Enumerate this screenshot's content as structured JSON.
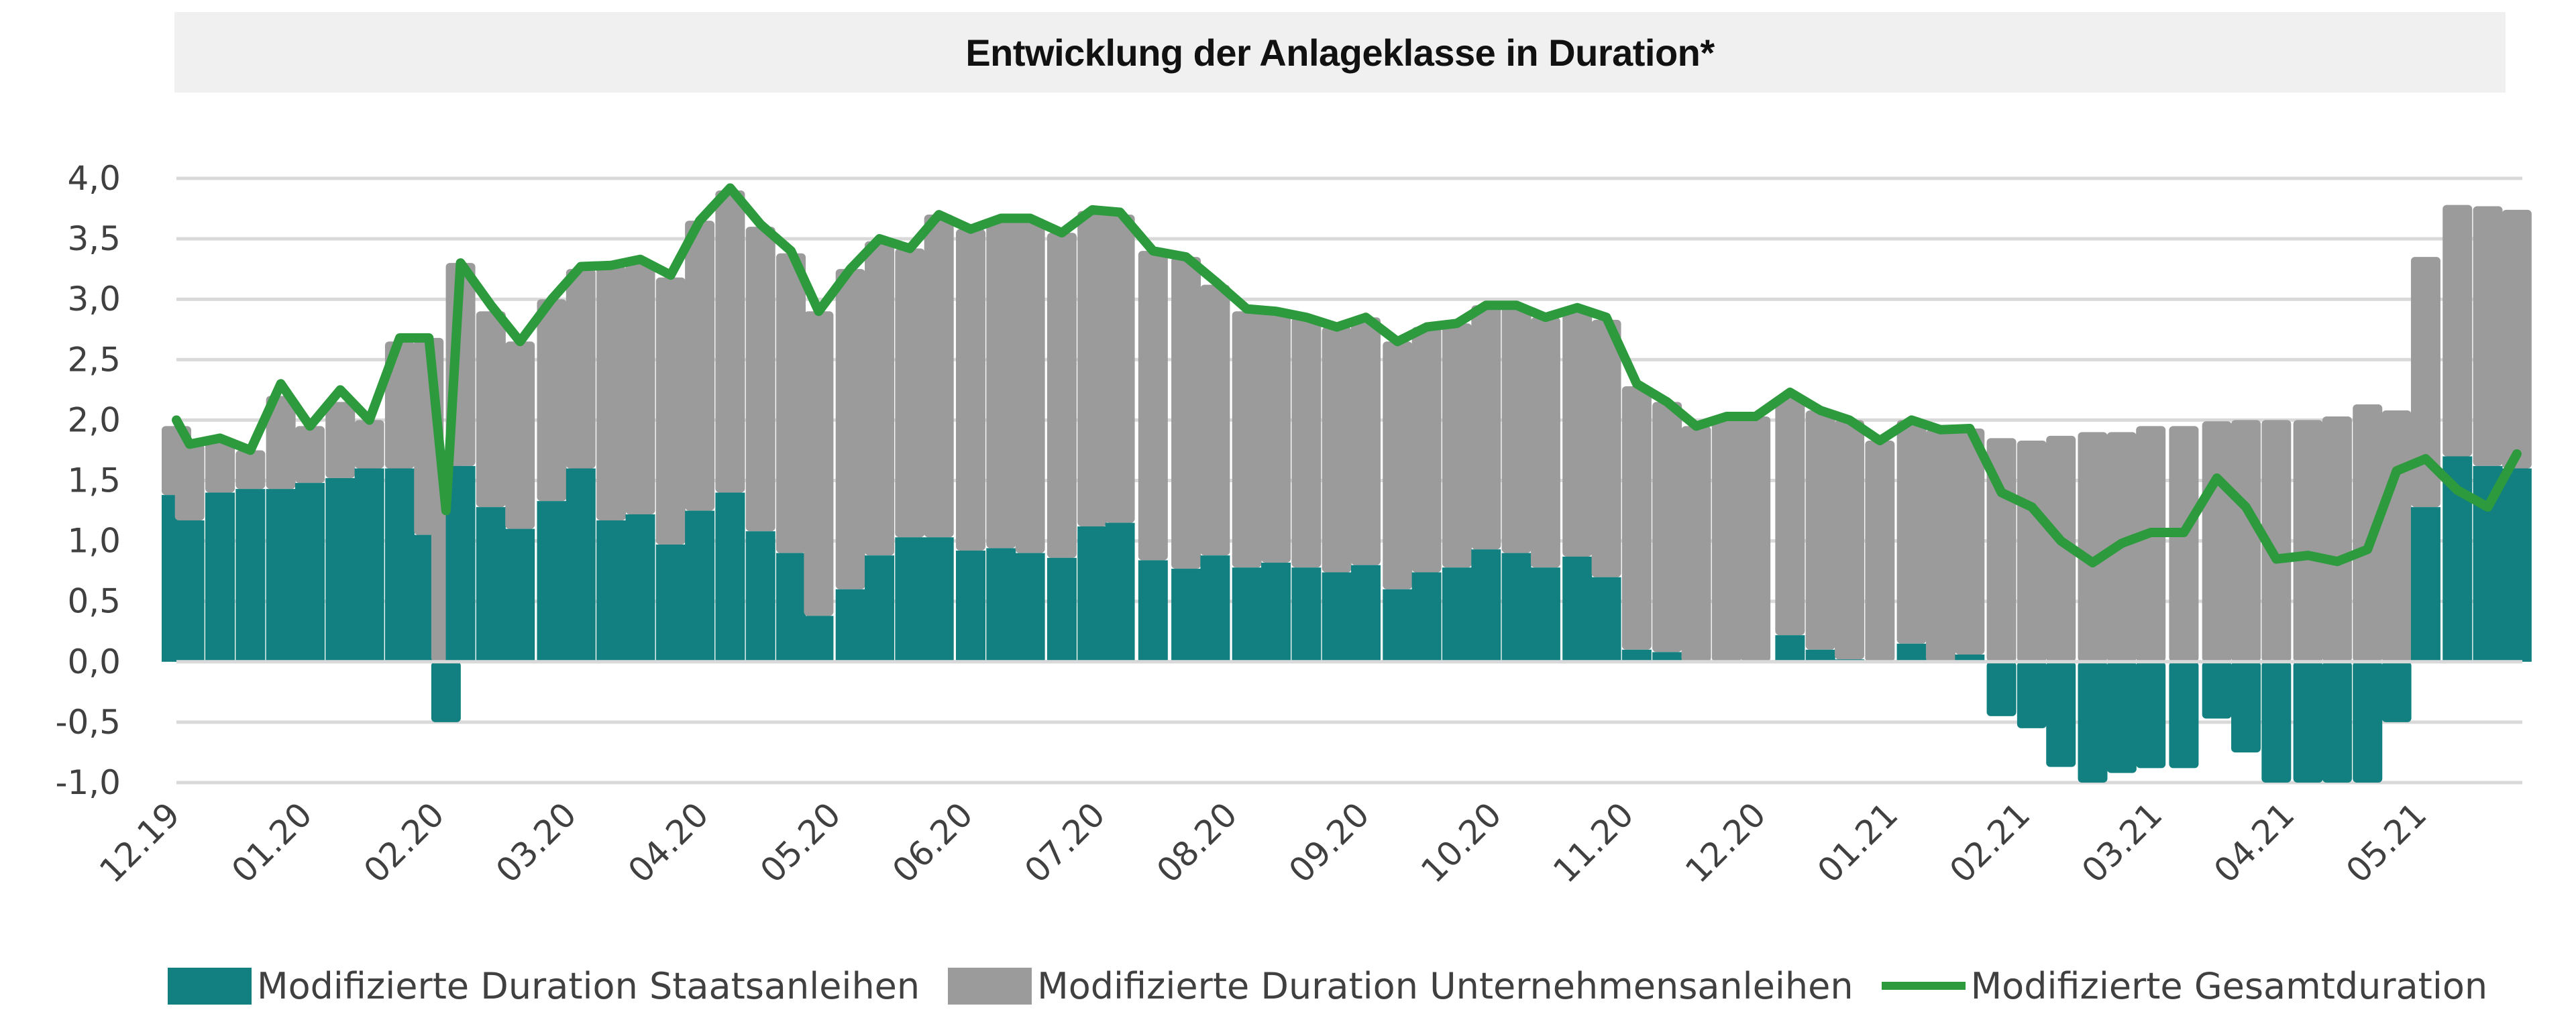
{
  "chart_data": {
    "type": "bar",
    "subtype": "stacked bar with line overlay",
    "title": "Entwicklung der Anlageklasse in Duration*",
    "xlabel": "",
    "ylabel": "",
    "ylim": [
      -1.0,
      4.0
    ],
    "yticks": [
      4.0,
      3.5,
      3.0,
      2.5,
      2.0,
      1.5,
      1.0,
      0.5,
      0.0,
      -0.5,
      -1.0
    ],
    "ytick_labels": [
      "4,0",
      "3,5",
      "3,0",
      "2,5",
      "2,0",
      "1,5",
      "1,0",
      "0,5",
      "0,0",
      "-0,5",
      "-1,0"
    ],
    "grid": true,
    "legend_position": "bottom",
    "x_ticks": [
      "12.19",
      "01.20",
      "02.20",
      "03.20",
      "04.20",
      "05.20",
      "06.20",
      "07.20",
      "08.20",
      "09.20",
      "10.20",
      "11.20",
      "12.20",
      "01.21",
      "02.21",
      "03.21",
      "04.21",
      "05.21"
    ],
    "x_unit": "months since 12.19",
    "x": [
      0.0,
      0.1,
      0.33,
      0.56,
      0.79,
      1.01,
      1.24,
      1.46,
      1.69,
      1.91,
      2.04,
      2.15,
      2.38,
      2.6,
      2.84,
      3.06,
      3.29,
      3.51,
      3.74,
      3.96,
      4.19,
      4.42,
      4.65,
      4.86,
      5.1,
      5.32,
      5.55,
      5.77,
      6.01,
      6.24,
      6.46,
      6.7,
      6.93,
      7.14,
      7.39,
      7.64,
      7.86,
      8.1,
      8.32,
      8.55,
      8.78,
      9.0,
      9.24,
      9.46,
      9.69,
      9.91,
      10.14,
      10.36,
      10.6,
      10.82,
      11.05,
      11.28,
      11.5,
      11.73,
      11.95,
      12.21,
      12.44,
      12.66,
      12.89,
      13.13,
      13.35,
      13.57,
      13.81,
      14.04,
      14.26,
      14.5,
      14.72,
      14.94,
      15.19,
      15.44,
      15.66,
      15.89,
      16.13,
      16.35,
      16.58,
      16.8,
      17.02,
      17.26,
      17.49,
      17.71
    ],
    "series": [
      {
        "name": "Modifizierte Duration Staatsanleihen",
        "type": "bar",
        "color": "#128080",
        "values": [
          1.38,
          1.17,
          1.4,
          1.43,
          1.43,
          1.48,
          1.52,
          1.6,
          1.6,
          1.05,
          -0.5,
          1.62,
          1.28,
          1.1,
          1.33,
          1.6,
          1.17,
          1.22,
          0.97,
          1.25,
          1.4,
          1.08,
          0.9,
          0.38,
          0.6,
          0.88,
          1.03,
          1.03,
          0.92,
          0.94,
          0.9,
          0.86,
          1.12,
          1.15,
          0.84,
          0.77,
          0.88,
          0.78,
          0.82,
          0.78,
          0.74,
          0.8,
          0.6,
          0.74,
          0.78,
          0.93,
          0.9,
          0.78,
          0.87,
          0.7,
          0.1,
          0.08,
          0.0,
          0.0,
          0.0,
          0.22,
          0.1,
          0.02,
          0.0,
          0.15,
          0.0,
          0.06,
          -0.45,
          -0.55,
          -0.87,
          -1.0,
          -0.92,
          -0.88,
          -0.88,
          -0.47,
          -0.75,
          -1.0,
          -1.0,
          -1.0,
          -1.0,
          -0.5,
          1.28,
          1.7,
          1.62,
          1.6
        ]
      },
      {
        "name": "Modifizierte Duration Unternehmensanleihen",
        "type": "bar",
        "color": "#9b9b9b",
        "values": [
          0.57,
          0.63,
          0.45,
          0.32,
          0.77,
          0.47,
          0.63,
          0.4,
          1.05,
          1.63,
          1.75,
          1.68,
          1.62,
          1.55,
          1.67,
          1.65,
          2.1,
          2.1,
          2.21,
          2.4,
          2.5,
          2.52,
          2.48,
          2.52,
          2.65,
          2.6,
          2.39,
          2.67,
          2.66,
          2.73,
          2.77,
          2.69,
          2.61,
          2.55,
          2.56,
          2.58,
          2.24,
          2.12,
          2.08,
          2.07,
          2.03,
          2.05,
          2.05,
          2.03,
          2.02,
          2.02,
          2.05,
          2.07,
          2.06,
          2.13,
          2.18,
          2.07,
          1.95,
          2.03,
          2.03,
          1.98,
          1.98,
          1.98,
          1.83,
          1.85,
          1.92,
          1.87,
          1.85,
          1.83,
          1.87,
          1.9,
          1.9,
          1.95,
          1.95,
          1.99,
          2.0,
          2.0,
          2.0,
          2.03,
          2.13,
          2.08,
          2.07,
          2.08,
          2.15,
          2.14
        ]
      },
      {
        "name": "Modifizierte Gesamtduration",
        "type": "line",
        "color": "#2e9a3e",
        "values": [
          2.0,
          1.8,
          1.85,
          1.75,
          2.3,
          1.95,
          2.25,
          2.0,
          2.68,
          2.68,
          1.25,
          3.3,
          2.95,
          2.65,
          3.0,
          3.27,
          3.28,
          3.33,
          3.2,
          3.65,
          3.92,
          3.62,
          3.4,
          2.9,
          3.25,
          3.5,
          3.42,
          3.7,
          3.58,
          3.67,
          3.67,
          3.55,
          3.74,
          3.72,
          3.4,
          3.35,
          3.15,
          2.92,
          2.9,
          2.85,
          2.77,
          2.85,
          2.65,
          2.77,
          2.8,
          2.95,
          2.95,
          2.85,
          2.93,
          2.85,
          2.3,
          2.15,
          1.95,
          2.03,
          2.03,
          2.23,
          2.08,
          2.0,
          1.83,
          2.0,
          1.92,
          1.93,
          1.4,
          1.28,
          1.0,
          0.82,
          0.98,
          1.07,
          1.07,
          1.52,
          1.28,
          0.85,
          0.88,
          0.83,
          0.93,
          1.58,
          1.68,
          1.42,
          1.28,
          1.72
        ]
      }
    ]
  },
  "legend": {
    "items": [
      {
        "label": "Modifizierte Duration Staatsanleihen",
        "kind": "swatch",
        "color": "#128080"
      },
      {
        "label": "Modifizierte Duration Unternehmensanleihen",
        "kind": "swatch",
        "color": "#9b9b9b"
      },
      {
        "label": "Modifizierte Gesamtduration",
        "kind": "line",
        "color": "#2e9a3e"
      }
    ]
  }
}
